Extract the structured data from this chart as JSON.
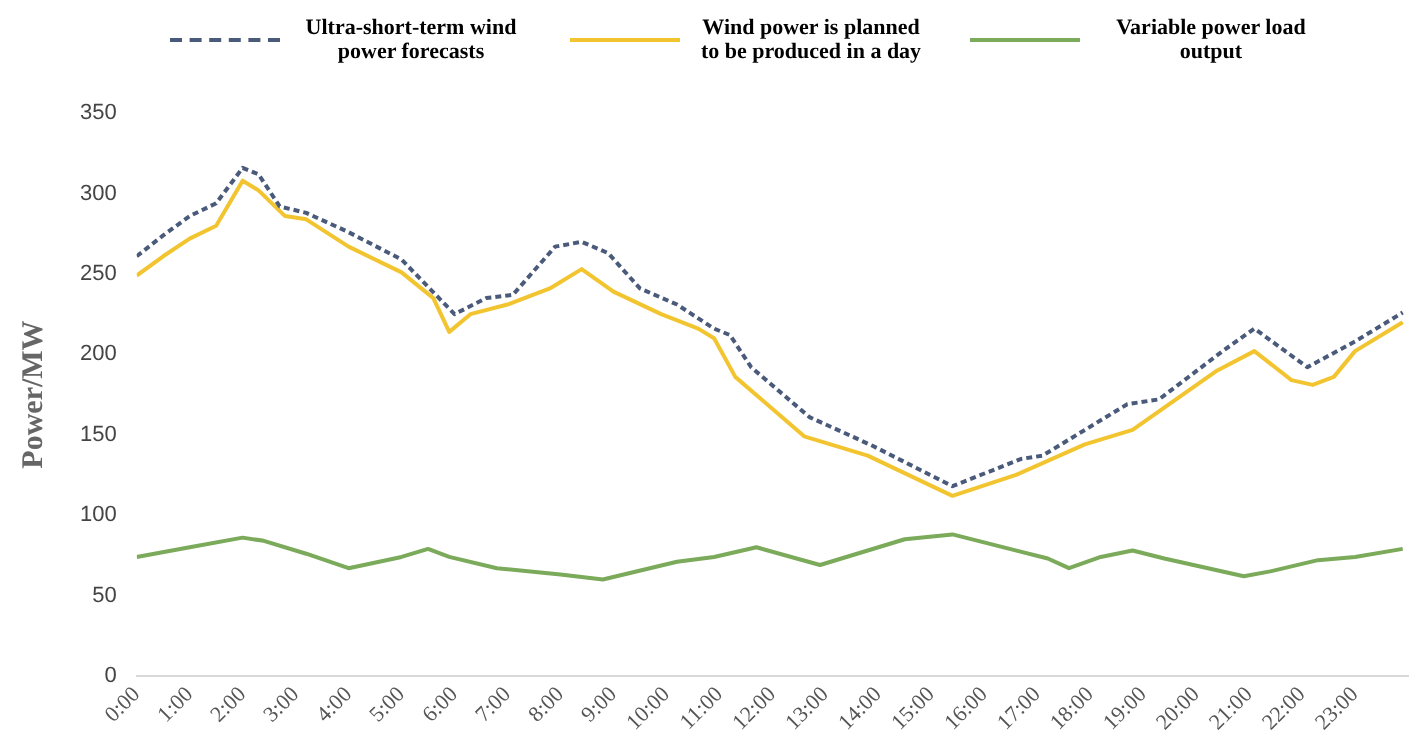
{
  "chart_data": {
    "type": "line",
    "ylabel": "Power/MW",
    "legend": "top",
    "grid": false,
    "marker": "none",
    "xlim": [
      0,
      24
    ],
    "ylim": [
      0,
      350
    ],
    "yticks": [
      0,
      50,
      100,
      150,
      200,
      250,
      300,
      350
    ],
    "xticks": [
      {
        "value": 0,
        "label": "0:00"
      },
      {
        "value": 1,
        "label": "1:00"
      },
      {
        "value": 2,
        "label": "2:00"
      },
      {
        "value": 3,
        "label": "3:00"
      },
      {
        "value": 4,
        "label": "4:00"
      },
      {
        "value": 5,
        "label": "5:00"
      },
      {
        "value": 6,
        "label": "6:00"
      },
      {
        "value": 7,
        "label": "7:00"
      },
      {
        "value": 8,
        "label": "8:00"
      },
      {
        "value": 9,
        "label": "9:00"
      },
      {
        "value": 10,
        "label": "10:00"
      },
      {
        "value": 11,
        "label": "11:00"
      },
      {
        "value": 12,
        "label": "12:00"
      },
      {
        "value": 13,
        "label": "13:00"
      },
      {
        "value": 14,
        "label": "14:00"
      },
      {
        "value": 15,
        "label": "15:00"
      },
      {
        "value": 16,
        "label": "16:00"
      },
      {
        "value": 17,
        "label": "17:00"
      },
      {
        "value": 18,
        "label": "18:00"
      },
      {
        "value": 19,
        "label": "19:00"
      },
      {
        "value": 20,
        "label": "20:00"
      },
      {
        "value": 21,
        "label": "21:00"
      },
      {
        "value": 22,
        "label": "22:00"
      },
      {
        "value": 23,
        "label": "23:00"
      }
    ],
    "series": [
      {
        "name": "Ultra-short-term wind power forecasts",
        "color": "#4a5a7a",
        "line_style": "dashed",
        "x": [
          0,
          0.5,
          1,
          1.5,
          2,
          2.3,
          2.7,
          3.2,
          4,
          5,
          6,
          6.6,
          7.1,
          7.9,
          8.4,
          8.9,
          9.5,
          10.2,
          10.9,
          11.2,
          11.6,
          12.7,
          13.9,
          15.4,
          16.7,
          17.1,
          18.7,
          19.3,
          20.5,
          21.1,
          22.1,
          23,
          23.9
        ],
        "values": [
          261,
          274,
          286,
          294,
          316,
          312,
          292,
          288,
          276,
          259,
          225,
          235,
          237,
          267,
          270,
          263,
          241,
          231,
          216,
          212,
          192,
          161,
          143,
          118,
          135,
          137,
          169,
          172,
          202,
          216,
          192,
          208,
          226
        ]
      },
      {
        "name": "Wind power is planned to be produced in a day",
        "color": "#f2c530",
        "line_style": "solid",
        "x": [
          0,
          0.5,
          1,
          1.5,
          2,
          2.3,
          2.8,
          3.2,
          4,
          5,
          5.6,
          5.9,
          6.3,
          7,
          7.8,
          8.4,
          9,
          9.9,
          10.6,
          10.9,
          11.3,
          12.6,
          13.8,
          15.4,
          16.6,
          17.9,
          18.8,
          20.4,
          21.1,
          21.8,
          22.2,
          22.6,
          23,
          23.9
        ],
        "values": [
          249,
          261,
          272,
          280,
          308,
          302,
          286,
          284,
          267,
          251,
          235,
          214,
          225,
          231,
          241,
          253,
          239,
          225,
          216,
          210,
          186,
          149,
          137,
          112,
          125,
          144,
          153,
          190,
          202,
          184,
          181,
          186,
          202,
          220
        ]
      },
      {
        "name": "Variable power load output",
        "color": "#7aaa5a",
        "line_style": "solid",
        "x": [
          0,
          1,
          2,
          2.4,
          3.2,
          4,
          5,
          5.5,
          5.9,
          6.8,
          8,
          8.8,
          10.2,
          10.9,
          11.7,
          12.9,
          14.5,
          15.4,
          17.2,
          17.6,
          18.2,
          18.8,
          19.4,
          20.9,
          21.4,
          22.3,
          23,
          23.9
        ],
        "values": [
          74,
          80,
          86,
          84,
          76,
          67,
          74,
          79,
          74,
          67,
          63,
          60,
          71,
          74,
          80,
          69,
          85,
          88,
          73,
          67,
          74,
          78,
          73,
          62,
          65,
          72,
          74,
          79
        ]
      }
    ]
  }
}
